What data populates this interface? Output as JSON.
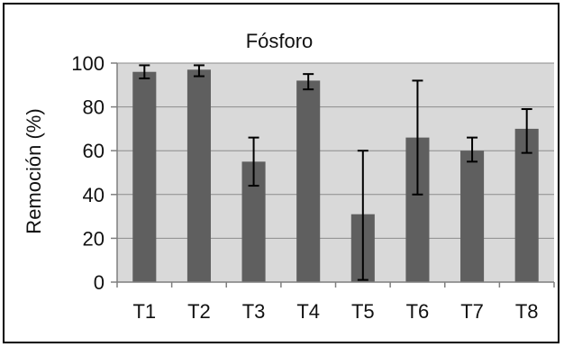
{
  "chart_data": {
    "type": "bar",
    "title": "Fósforo",
    "ylabel": "Remoción (%)",
    "xlabel": "",
    "categories": [
      "T1",
      "T2",
      "T3",
      "T4",
      "T5",
      "T6",
      "T7",
      "T8"
    ],
    "values": [
      96,
      97,
      55,
      92,
      31,
      66,
      60,
      70
    ],
    "error_low": [
      93,
      94,
      44,
      88,
      1,
      40,
      55,
      59
    ],
    "error_high": [
      99,
      99,
      66,
      95,
      60,
      92,
      66,
      79
    ],
    "ylim": [
      0,
      100
    ],
    "yticks": [
      0,
      20,
      40,
      60,
      80,
      100
    ],
    "grid": true,
    "colors": {
      "bar": "#5f5f5f",
      "plot_bg": "#d9d9d9",
      "grid": "#8c8c8c",
      "axis": "#7f7f7f",
      "frame": "#000000",
      "error": "#000000"
    }
  }
}
